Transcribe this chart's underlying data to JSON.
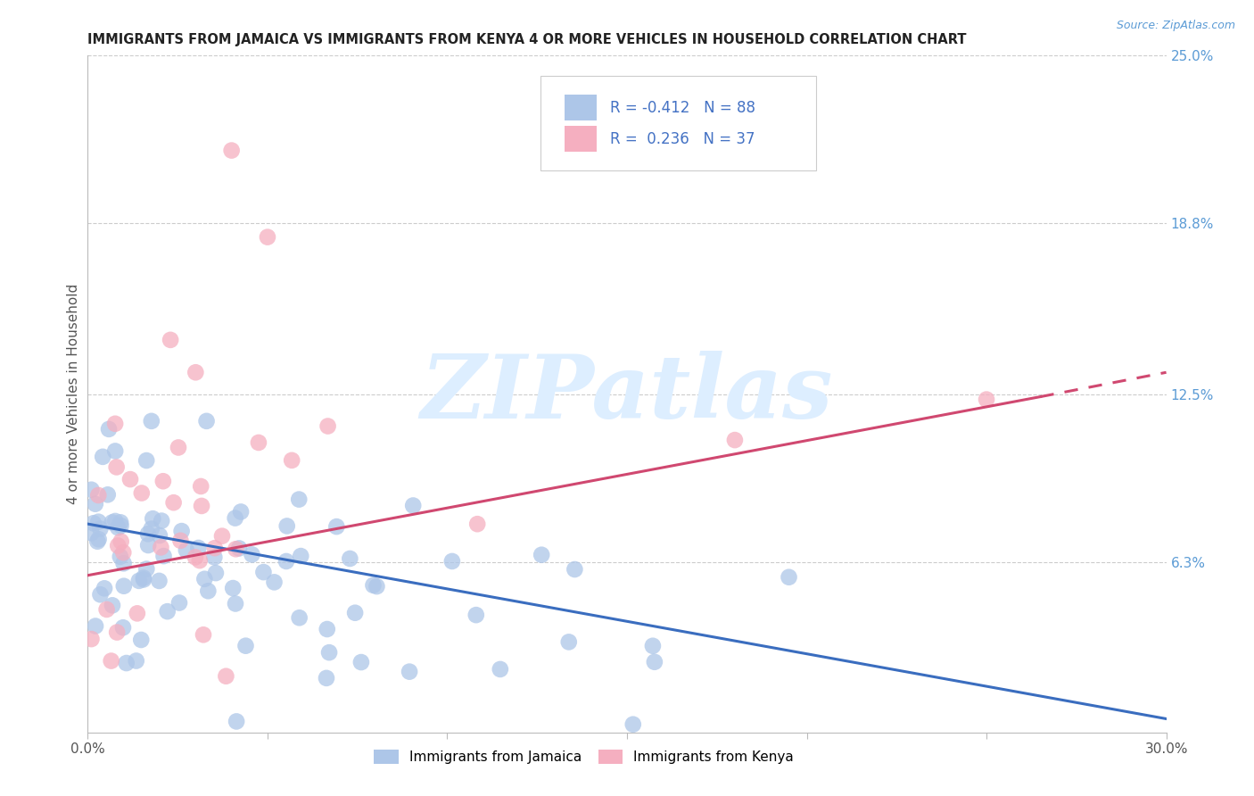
{
  "title": "IMMIGRANTS FROM JAMAICA VS IMMIGRANTS FROM KENYA 4 OR MORE VEHICLES IN HOUSEHOLD CORRELATION CHART",
  "source": "Source: ZipAtlas.com",
  "ylabel": "4 or more Vehicles in Household",
  "xlim": [
    0.0,
    0.3
  ],
  "ylim": [
    0.0,
    0.25
  ],
  "yticks_right": [
    0.063,
    0.125,
    0.188,
    0.25
  ],
  "yticklabels_right": [
    "6.3%",
    "12.5%",
    "18.8%",
    "25.0%"
  ],
  "jamaica_R": -0.412,
  "jamaica_N": 88,
  "kenya_R": 0.236,
  "kenya_N": 37,
  "jamaica_color": "#adc6e8",
  "kenya_color": "#f5afc0",
  "jamaica_line_color": "#3a6dbf",
  "kenya_line_color": "#d04870",
  "legend_text_color": "#4472c4",
  "axis_label_color": "#555555",
  "right_tick_color": "#5b9bd5",
  "grid_color": "#cccccc",
  "watermark_color": "#ddeeff",
  "watermark": "ZIPatlas",
  "legend_label_jamaica": "Immigrants from Jamaica",
  "legend_label_kenya": "Immigrants from Kenya",
  "jam_line_x0": 0.0,
  "jam_line_x1": 0.3,
  "jam_line_y0": 0.077,
  "jam_line_y1": 0.005,
  "ken_line_x0": 0.0,
  "ken_line_x1": 0.265,
  "ken_line_y0": 0.058,
  "ken_line_y1": 0.124,
  "ken_line_dash_x0": 0.265,
  "ken_line_dash_x1": 0.3,
  "ken_line_dash_y0": 0.124,
  "ken_line_dash_y1": 0.133
}
